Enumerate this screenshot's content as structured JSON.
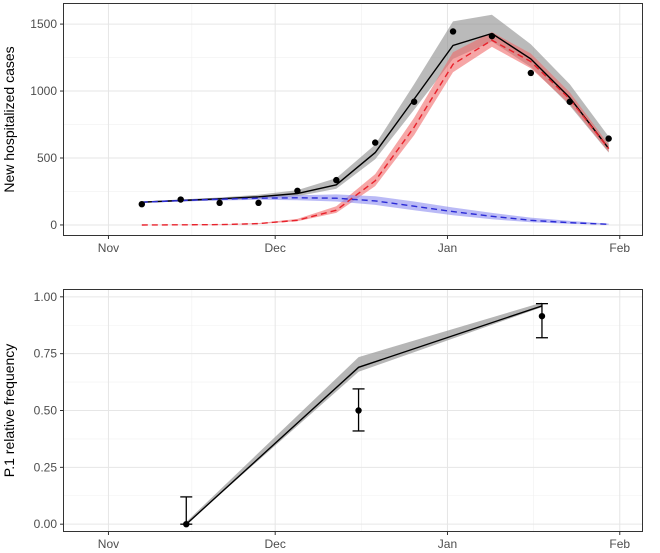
{
  "chart_data": [
    {
      "type": "line",
      "ylabel": "New hospitalized cases",
      "x_tick_labels": [
        "Nov",
        "Dec",
        "Jan",
        "Feb"
      ],
      "x_tick_dates": [
        "2020-11-01",
        "2020-12-01",
        "2021-01-01",
        "2021-02-01"
      ],
      "xlim": [
        "2020-10-24",
        "2021-02-05"
      ],
      "y_ticks": [
        0,
        500,
        1000,
        1500
      ],
      "ylim": [
        -75,
        1650
      ],
      "grid": true,
      "colors": {
        "total": "#000000",
        "total_band": "#9e9e9e",
        "variant": "#e8212b",
        "variant_band": "#f08a8a",
        "other": "#2b2bd6",
        "other_band": "#9a9af0"
      },
      "series": [
        {
          "line": "solid",
          "x": [
            "2020-11-07",
            "2020-11-14",
            "2020-11-21",
            "2020-11-28",
            "2020-12-05",
            "2020-12-12",
            "2020-12-19",
            "2020-12-26",
            "2021-01-02",
            "2021-01-09",
            "2021-01-16",
            "2021-01-23",
            "2021-01-30"
          ],
          "y": [
            170,
            183,
            195,
            210,
            235,
            300,
            540,
            940,
            1340,
            1430,
            1240,
            950,
            570
          ],
          "lower": [
            165,
            175,
            185,
            195,
            215,
            270,
            490,
            860,
            1240,
            1370,
            1180,
            890,
            540
          ],
          "upper": [
            175,
            190,
            205,
            225,
            260,
            350,
            600,
            1050,
            1520,
            1570,
            1350,
            1050,
            660
          ]
        },
        {
          "line": "dashed",
          "x": [
            "2020-11-07",
            "2020-11-14",
            "2020-11-21",
            "2020-11-28",
            "2020-12-05",
            "2020-12-12",
            "2020-12-19",
            "2020-12-26",
            "2021-01-02",
            "2021-01-09",
            "2021-01-16",
            "2021-01-23",
            "2021-01-30"
          ],
          "y": [
            0,
            1,
            3,
            10,
            35,
            110,
            330,
            730,
            1200,
            1380,
            1220,
            940,
            570
          ],
          "lower": [
            0,
            0,
            2,
            7,
            28,
            90,
            290,
            670,
            1140,
            1330,
            1170,
            900,
            545
          ],
          "upper": [
            0,
            2,
            5,
            14,
            45,
            140,
            380,
            800,
            1290,
            1440,
            1280,
            990,
            600
          ]
        },
        {
          "line": "dashed",
          "x": [
            "2020-11-07",
            "2020-11-14",
            "2020-11-21",
            "2020-11-28",
            "2020-12-05",
            "2020-12-12",
            "2020-12-19",
            "2020-12-26",
            "2021-01-02",
            "2021-01-09",
            "2021-01-16",
            "2021-01-23",
            "2021-01-30"
          ],
          "y": [
            170,
            182,
            192,
            200,
            203,
            200,
            180,
            140,
            100,
            65,
            35,
            17,
            5
          ],
          "lower": [
            165,
            175,
            183,
            188,
            185,
            175,
            150,
            110,
            72,
            42,
            20,
            8,
            2
          ],
          "upper": [
            175,
            190,
            202,
            212,
            222,
            228,
            215,
            175,
            130,
            90,
            55,
            30,
            10
          ]
        }
      ],
      "observed_points": [
        {
          "x": "2020-11-07",
          "y": 155
        },
        {
          "x": "2020-11-14",
          "y": 190
        },
        {
          "x": "2020-11-21",
          "y": 165
        },
        {
          "x": "2020-11-28",
          "y": 165
        },
        {
          "x": "2020-12-05",
          "y": 255
        },
        {
          "x": "2020-12-12",
          "y": 335
        },
        {
          "x": "2020-12-19",
          "y": 615
        },
        {
          "x": "2020-12-26",
          "y": 920
        },
        {
          "x": "2021-01-02",
          "y": 1445
        },
        {
          "x": "2021-01-09",
          "y": 1410
        },
        {
          "x": "2021-01-16",
          "y": 1135
        },
        {
          "x": "2021-01-23",
          "y": 920
        },
        {
          "x": "2021-01-30",
          "y": 645
        }
      ]
    },
    {
      "type": "line",
      "ylabel": "P.1 relative frequency",
      "x_tick_labels": [
        "Nov",
        "Dec",
        "Jan",
        "Feb"
      ],
      "x_tick_dates": [
        "2020-11-01",
        "2020-12-01",
        "2021-01-01",
        "2021-02-01"
      ],
      "xlim": [
        "2020-10-24",
        "2021-02-05"
      ],
      "y_tick_labels": [
        "0.00",
        "0.25",
        "0.50",
        "0.75",
        "1.00"
      ],
      "y_ticks": [
        0,
        0.25,
        0.5,
        0.75,
        1.0
      ],
      "ylim": [
        -0.03,
        1.03
      ],
      "grid": true,
      "series": [
        {
          "line": "solid",
          "x": [
            "2020-11-15",
            "2020-12-16",
            "2021-01-18"
          ],
          "y": [
            0.0,
            0.69,
            0.96
          ],
          "lower": [
            0.0,
            0.67,
            0.955
          ],
          "upper": [
            0.01,
            0.735,
            0.975
          ]
        }
      ],
      "observed_points": [
        {
          "x": "2020-11-15",
          "y": 0.0,
          "lower": 0.0,
          "upper": 0.12
        },
        {
          "x": "2020-12-16",
          "y": 0.5,
          "lower": 0.41,
          "upper": 0.595
        },
        {
          "x": "2021-01-18",
          "y": 0.915,
          "lower": 0.82,
          "upper": 0.97
        }
      ]
    }
  ]
}
